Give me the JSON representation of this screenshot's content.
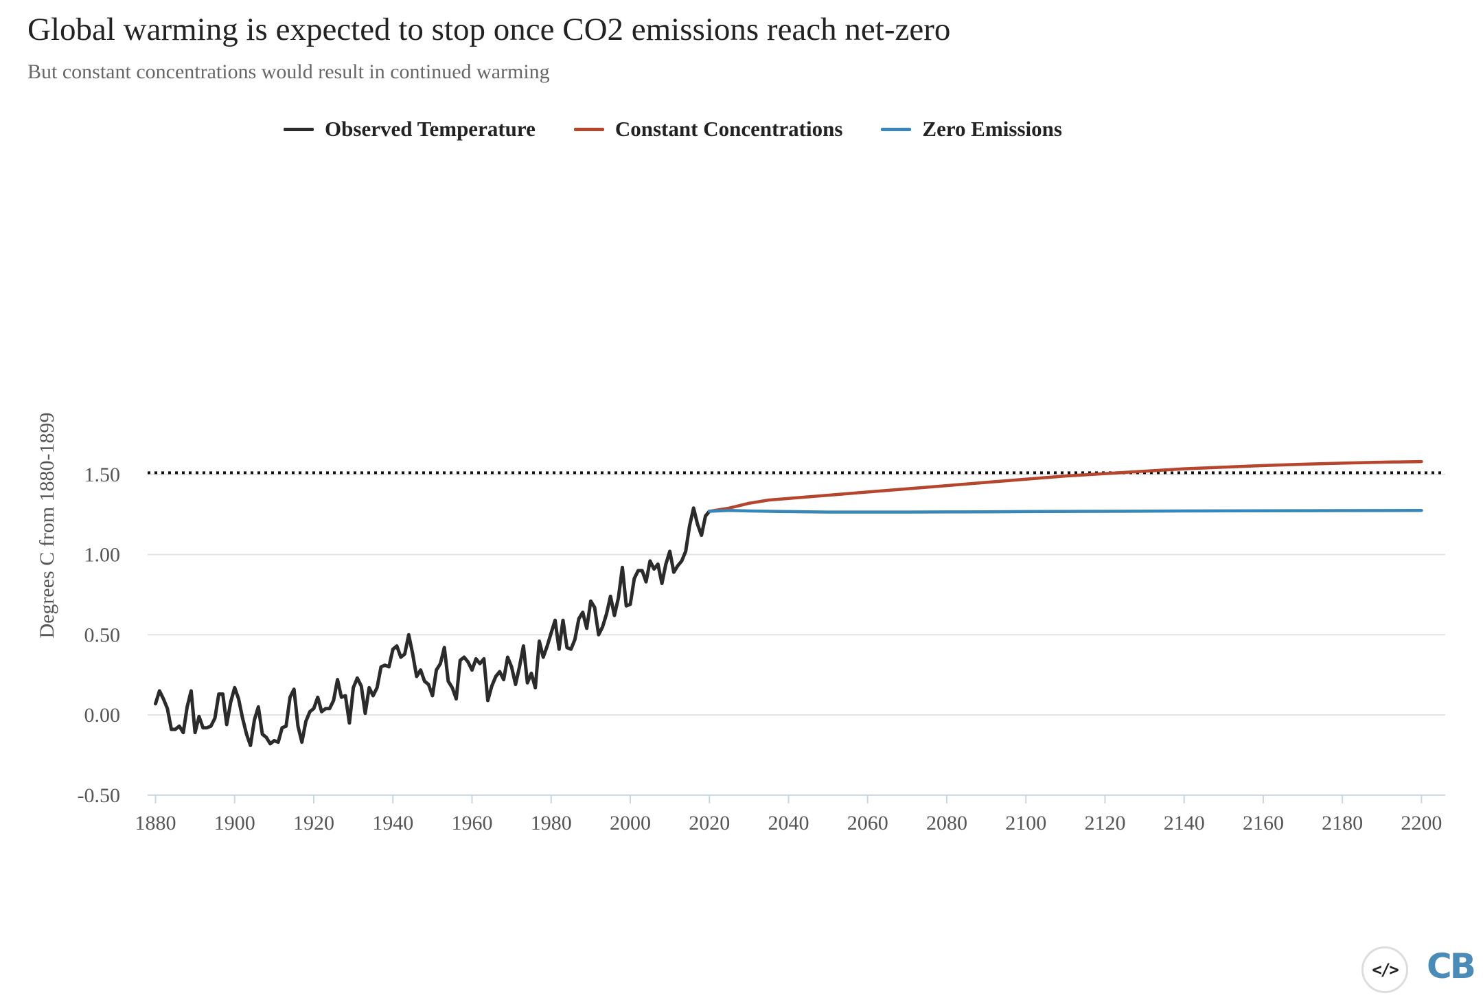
{
  "chart_data": {
    "type": "line",
    "title": "Global warming is expected to stop once CO2 emissions reach net-zero",
    "subtitle": "But constant concentrations would result in continued warming",
    "xlabel": "",
    "ylabel": "Degrees C from 1880-1899",
    "xlim": [
      1878,
      2206
    ],
    "ylim": [
      -0.5,
      1.8
    ],
    "xticks": [
      "1880",
      "1900",
      "1920",
      "1940",
      "1960",
      "1980",
      "2000",
      "2020",
      "2040",
      "2060",
      "2080",
      "2100",
      "2120",
      "2140",
      "2160",
      "2180",
      "2200"
    ],
    "yticks": [
      "-0.50",
      "0.00",
      "0.50",
      "1.00",
      "1.50"
    ],
    "reference_line": {
      "y": 1.51,
      "style": "dotted",
      "color": "#111111"
    },
    "grid": "horizontal",
    "legend_position": "top-center",
    "series": [
      {
        "name": "Observed Temperature",
        "color": "#2b2b2b",
        "x_start": 1880,
        "values": [
          0.07,
          0.15,
          0.1,
          0.04,
          -0.09,
          -0.09,
          -0.07,
          -0.11,
          0.05,
          0.15,
          -0.11,
          -0.01,
          -0.08,
          -0.08,
          -0.07,
          -0.02,
          0.13,
          0.13,
          -0.06,
          0.08,
          0.17,
          0.1,
          -0.02,
          -0.12,
          -0.19,
          -0.03,
          0.05,
          -0.12,
          -0.14,
          -0.18,
          -0.16,
          -0.17,
          -0.08,
          -0.07,
          0.11,
          0.16,
          -0.07,
          -0.17,
          -0.04,
          0.02,
          0.04,
          0.11,
          0.02,
          0.04,
          0.04,
          0.09,
          0.22,
          0.11,
          0.12,
          -0.05,
          0.17,
          0.23,
          0.18,
          0.01,
          0.17,
          0.12,
          0.17,
          0.3,
          0.31,
          0.3,
          0.41,
          0.43,
          0.36,
          0.38,
          0.5,
          0.38,
          0.24,
          0.28,
          0.21,
          0.19,
          0.12,
          0.28,
          0.32,
          0.42,
          0.21,
          0.17,
          0.1,
          0.34,
          0.36,
          0.33,
          0.28,
          0.35,
          0.32,
          0.35,
          0.09,
          0.18,
          0.24,
          0.27,
          0.22,
          0.36,
          0.3,
          0.19,
          0.3,
          0.43,
          0.2,
          0.26,
          0.17,
          0.46,
          0.36,
          0.43,
          0.51,
          0.59,
          0.41,
          0.59,
          0.42,
          0.41,
          0.47,
          0.6,
          0.64,
          0.54,
          0.71,
          0.67,
          0.5,
          0.55,
          0.63,
          0.74,
          0.62,
          0.73,
          0.92,
          0.68,
          0.69,
          0.85,
          0.9,
          0.9,
          0.83,
          0.96,
          0.91,
          0.94,
          0.82,
          0.94,
          1.02,
          0.89,
          0.93,
          0.96,
          1.02,
          1.18,
          1.29,
          1.19,
          1.12,
          1.24,
          1.27
        ]
      },
      {
        "name": "Constant Concentrations",
        "color": "#b5452d",
        "x": [
          2020,
          2025,
          2030,
          2035,
          2040,
          2050,
          2060,
          2070,
          2080,
          2090,
          2100,
          2110,
          2120,
          2130,
          2140,
          2150,
          2160,
          2170,
          2180,
          2190,
          2200
        ],
        "values": [
          1.27,
          1.29,
          1.32,
          1.34,
          1.35,
          1.37,
          1.39,
          1.41,
          1.43,
          1.45,
          1.47,
          1.49,
          1.505,
          1.52,
          1.535,
          1.545,
          1.555,
          1.563,
          1.57,
          1.576,
          1.58
        ]
      },
      {
        "name": "Zero Emissions",
        "color": "#3987b8",
        "x": [
          2020,
          2025,
          2030,
          2040,
          2050,
          2060,
          2070,
          2080,
          2090,
          2100,
          2120,
          2140,
          2160,
          2180,
          2200
        ],
        "values": [
          1.27,
          1.275,
          1.272,
          1.268,
          1.265,
          1.265,
          1.265,
          1.266,
          1.267,
          1.268,
          1.27,
          1.272,
          1.273,
          1.274,
          1.275
        ]
      }
    ]
  },
  "logos": {
    "embed_icon": "code-embed-icon",
    "brand": "CB",
    "brand_color": "#4a8bb8"
  }
}
